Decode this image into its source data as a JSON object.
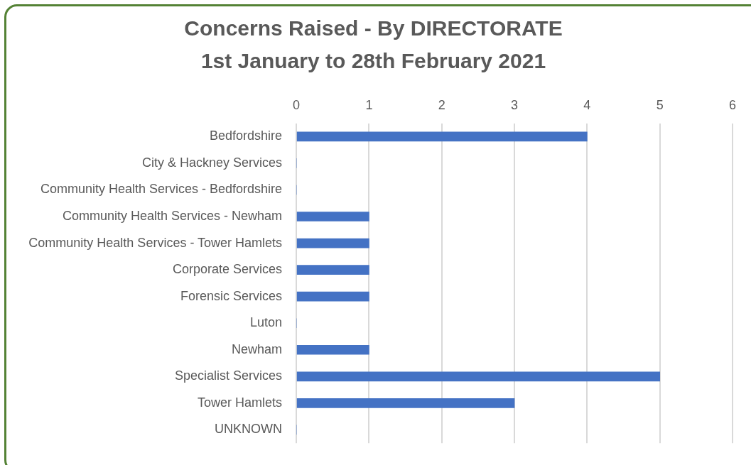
{
  "chart_data": {
    "type": "bar",
    "orientation": "horizontal",
    "title": "Concerns Raised - By DIRECTORATE",
    "subtitle": "1st January to 28th February 2021",
    "categories": [
      "Bedfordshire",
      "City & Hackney Services",
      "Community Health Services - Bedfordshire",
      "Community Health Services - Newham",
      "Community Health Services - Tower Hamlets",
      "Corporate Services",
      "Forensic Services",
      "Luton",
      "Newham",
      "Specialist Services",
      "Tower Hamlets",
      "UNKNOWN"
    ],
    "values": [
      4,
      0,
      0,
      1,
      1,
      1,
      1,
      0,
      1,
      5,
      3,
      0
    ],
    "color": "#4472c4",
    "xlim": [
      0,
      6
    ],
    "xticks": [
      0,
      1,
      2,
      3,
      4,
      5,
      6
    ],
    "grid": "x",
    "legend": false
  }
}
